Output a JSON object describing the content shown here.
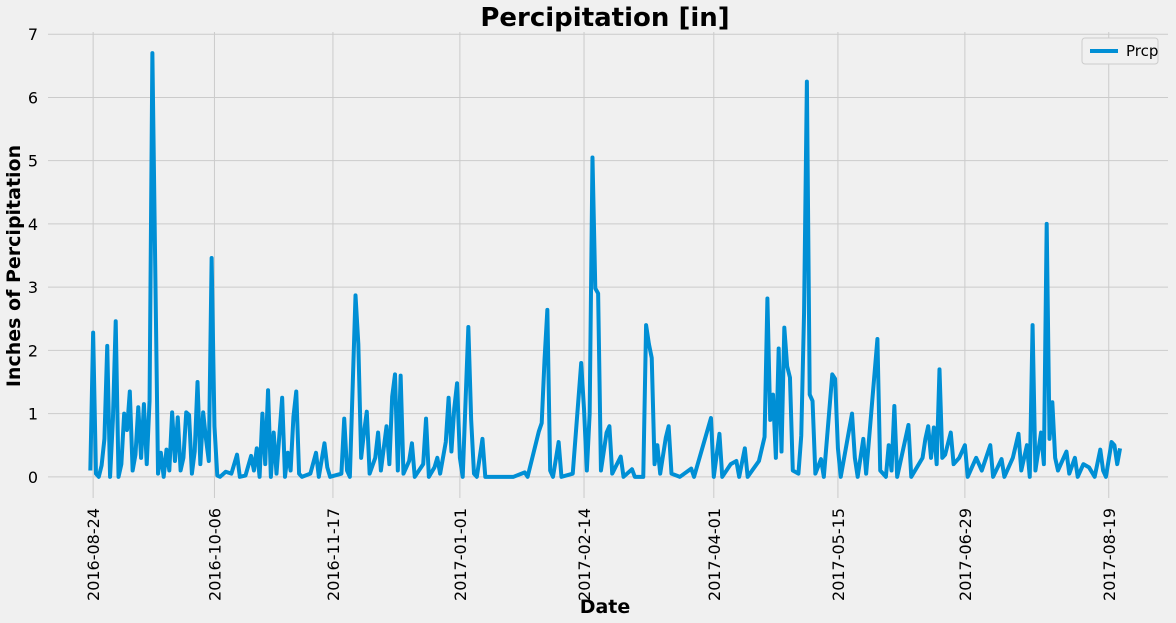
{
  "chart_data": {
    "type": "line",
    "title": "Percipitation [in]",
    "xlabel": "Date",
    "ylabel": "Inches of Percipitation",
    "x": [
      "2016-08-23",
      "2016-08-24",
      "2016-08-25",
      "2016-08-26",
      "2016-08-27",
      "2016-08-28",
      "2016-08-29",
      "2016-08-30",
      "2016-08-31",
      "2016-09-01",
      "2016-09-02",
      "2016-09-03",
      "2016-09-04",
      "2016-09-05",
      "2016-09-06",
      "2016-09-07",
      "2016-09-08",
      "2016-09-09",
      "2016-09-10",
      "2016-09-11",
      "2016-09-12",
      "2016-09-13",
      "2016-09-14",
      "2016-09-15",
      "2016-09-16",
      "2016-09-17",
      "2016-09-18",
      "2016-09-19",
      "2016-09-20",
      "2016-09-21",
      "2016-09-22",
      "2016-09-23",
      "2016-09-24",
      "2016-09-25",
      "2016-09-26",
      "2016-09-27",
      "2016-09-28",
      "2016-09-29",
      "2016-09-30",
      "2016-10-01",
      "2016-10-02",
      "2016-10-03",
      "2016-10-04",
      "2016-10-05",
      "2016-10-06",
      "2016-10-07",
      "2016-10-08",
      "2016-10-10",
      "2016-10-12",
      "2016-10-14",
      "2016-10-15",
      "2016-10-17",
      "2016-10-19",
      "2016-10-20",
      "2016-10-21",
      "2016-10-22",
      "2016-10-23",
      "2016-10-24",
      "2016-10-25",
      "2016-10-26",
      "2016-10-27",
      "2016-10-28",
      "2016-10-30",
      "2016-10-31",
      "2016-11-01",
      "2016-11-02",
      "2016-11-03",
      "2016-11-04",
      "2016-11-05",
      "2016-11-06",
      "2016-11-09",
      "2016-11-11",
      "2016-11-12",
      "2016-11-14",
      "2016-11-15",
      "2016-11-16",
      "2016-11-20",
      "2016-11-21",
      "2016-11-22",
      "2016-11-23",
      "2016-11-25",
      "2016-11-26",
      "2016-11-27",
      "2016-11-28",
      "2016-11-29",
      "2016-11-30",
      "2016-12-02",
      "2016-12-03",
      "2016-12-04",
      "2016-12-06",
      "2016-12-07",
      "2016-12-08",
      "2016-12-09",
      "2016-12-10",
      "2016-12-11",
      "2016-12-12",
      "2016-12-14",
      "2016-12-15",
      "2016-12-16",
      "2016-12-19",
      "2016-12-20",
      "2016-12-21",
      "2016-12-23",
      "2016-12-24",
      "2016-12-25",
      "2016-12-27",
      "2016-12-28",
      "2016-12-29",
      "2016-12-30",
      "2016-12-31",
      "2017-01-01",
      "2017-01-02",
      "2017-01-04",
      "2017-01-05",
      "2017-01-06",
      "2017-01-07",
      "2017-01-09",
      "2017-01-10",
      "2017-01-15",
      "2017-01-20",
      "2017-01-24",
      "2017-01-25",
      "2017-01-29",
      "2017-01-30",
      "2017-01-31",
      "2017-02-01",
      "2017-02-02",
      "2017-02-03",
      "2017-02-05",
      "2017-02-06",
      "2017-02-10",
      "2017-02-13",
      "2017-02-14",
      "2017-02-15",
      "2017-02-16",
      "2017-02-17",
      "2017-02-18",
      "2017-02-19",
      "2017-02-20",
      "2017-02-22",
      "2017-02-23",
      "2017-02-24",
      "2017-02-27",
      "2017-02-28",
      "2017-03-03",
      "2017-03-04",
      "2017-03-07",
      "2017-03-08",
      "2017-03-09",
      "2017-03-10",
      "2017-03-11",
      "2017-03-12",
      "2017-03-13",
      "2017-03-15",
      "2017-03-16",
      "2017-03-17",
      "2017-03-20",
      "2017-03-24",
      "2017-03-25",
      "2017-03-31",
      "2017-04-01",
      "2017-04-03",
      "2017-04-04",
      "2017-04-07",
      "2017-04-09",
      "2017-04-10",
      "2017-04-12",
      "2017-04-13",
      "2017-04-17",
      "2017-04-19",
      "2017-04-20",
      "2017-04-21",
      "2017-04-22",
      "2017-04-23",
      "2017-04-24",
      "2017-04-25",
      "2017-04-26",
      "2017-04-27",
      "2017-04-28",
      "2017-04-29",
      "2017-05-01",
      "2017-05-02",
      "2017-05-03",
      "2017-05-04",
      "2017-05-05",
      "2017-05-06",
      "2017-05-07",
      "2017-05-09",
      "2017-05-10",
      "2017-05-13",
      "2017-05-14",
      "2017-05-15",
      "2017-05-16",
      "2017-05-20",
      "2017-05-21",
      "2017-05-22",
      "2017-05-24",
      "2017-05-25",
      "2017-05-29",
      "2017-05-30",
      "2017-06-01",
      "2017-06-02",
      "2017-06-03",
      "2017-06-04",
      "2017-06-05",
      "2017-06-09",
      "2017-06-10",
      "2017-06-14",
      "2017-06-15",
      "2017-06-16",
      "2017-06-17",
      "2017-06-18",
      "2017-06-19",
      "2017-06-20",
      "2017-06-21",
      "2017-06-22",
      "2017-06-24",
      "2017-06-25",
      "2017-06-27",
      "2017-06-29",
      "2017-06-30",
      "2017-07-03",
      "2017-07-05",
      "2017-07-08",
      "2017-07-09",
      "2017-07-12",
      "2017-07-13",
      "2017-07-16",
      "2017-07-18",
      "2017-07-19",
      "2017-07-21",
      "2017-07-22",
      "2017-07-23",
      "2017-07-24",
      "2017-07-26",
      "2017-07-27",
      "2017-07-28",
      "2017-07-29",
      "2017-07-30",
      "2017-07-31",
      "2017-08-01",
      "2017-08-03",
      "2017-08-04",
      "2017-08-05",
      "2017-08-07",
      "2017-08-08",
      "2017-08-10",
      "2017-08-12",
      "2017-08-14",
      "2017-08-16",
      "2017-08-17",
      "2017-08-18",
      "2017-08-20",
      "2017-08-21",
      "2017-08-22",
      "2017-08-23"
    ],
    "series": [
      {
        "name": "Prcp",
        "color": "#008fd5",
        "values": [
          0.1,
          2.28,
          0.05,
          0.0,
          0.18,
          0.6,
          2.07,
          0.0,
          0.9,
          2.46,
          0.0,
          0.2,
          1.0,
          0.74,
          1.35,
          0.1,
          0.35,
          1.1,
          0.3,
          1.15,
          0.2,
          1.2,
          6.7,
          3.35,
          0.05,
          0.38,
          0.0,
          0.43,
          0.1,
          1.02,
          0.25,
          0.94,
          0.1,
          0.3,
          1.02,
          0.98,
          0.05,
          0.4,
          1.5,
          0.2,
          1.02,
          0.6,
          0.25,
          3.46,
          0.8,
          0.02,
          0.0,
          0.08,
          0.05,
          0.35,
          0.0,
          0.02,
          0.33,
          0.1,
          0.45,
          0.0,
          1.0,
          0.2,
          1.37,
          0.0,
          0.7,
          0.05,
          1.25,
          0.0,
          0.38,
          0.1,
          0.95,
          1.35,
          0.05,
          0.0,
          0.05,
          0.38,
          0.0,
          0.53,
          0.15,
          0.0,
          0.05,
          0.92,
          0.1,
          0.0,
          2.87,
          2.1,
          0.3,
          0.7,
          1.03,
          0.05,
          0.3,
          0.7,
          0.1,
          0.8,
          0.2,
          1.27,
          1.62,
          0.1,
          1.6,
          0.05,
          0.25,
          0.53,
          0.0,
          0.2,
          0.92,
          0.0,
          0.15,
          0.3,
          0.05,
          0.55,
          1.25,
          0.4,
          1.08,
          1.48,
          0.3,
          0.0,
          2.37,
          0.9,
          0.05,
          0.0,
          0.6,
          0.0,
          0.0,
          0.0,
          0.07,
          0.0,
          0.72,
          0.85,
          1.85,
          2.64,
          0.1,
          0.0,
          0.55,
          0.0,
          0.05,
          1.8,
          1.07,
          0.1,
          1.0,
          5.05,
          2.98,
          2.9,
          0.1,
          0.7,
          0.8,
          0.05,
          0.32,
          0.0,
          0.12,
          0.0,
          0.0,
          2.4,
          2.1,
          1.88,
          0.2,
          0.5,
          0.05,
          0.62,
          0.8,
          0.05,
          0.0,
          0.13,
          0.0,
          0.93,
          0.0,
          0.68,
          0.0,
          0.2,
          0.25,
          0.0,
          0.45,
          0.0,
          0.25,
          0.63,
          2.82,
          0.9,
          1.3,
          0.3,
          2.03,
          0.4,
          2.36,
          1.75,
          1.57,
          0.1,
          0.05,
          0.65,
          2.6,
          6.25,
          1.3,
          1.2,
          0.05,
          0.28,
          0.0,
          1.62,
          1.55,
          0.45,
          0.0,
          1.0,
          0.3,
          0.0,
          0.6,
          0.05,
          2.18,
          0.1,
          0.0,
          0.5,
          0.1,
          1.12,
          0.0,
          0.82,
          0.0,
          0.3,
          0.6,
          0.8,
          0.3,
          0.78,
          0.2,
          1.7,
          0.3,
          0.35,
          0.7,
          0.2,
          0.3,
          0.5,
          0.0,
          0.3,
          0.1,
          0.5,
          0.0,
          0.28,
          0.0,
          0.3,
          0.68,
          0.1,
          0.5,
          0.0,
          2.4,
          0.1,
          0.7,
          0.2,
          4.0,
          0.6,
          1.18,
          0.3,
          0.1,
          0.3,
          0.4,
          0.05,
          0.3,
          0.0,
          0.2,
          0.15,
          0.0,
          0.43,
          0.1,
          0.0,
          0.55,
          0.5,
          0.2,
          0.45
        ]
      }
    ],
    "xlim": [
      "2016-08-08",
      "2017-09-09"
    ],
    "xticks": [
      "2016-08-24",
      "2016-10-06",
      "2016-11-17",
      "2017-01-01",
      "2017-02-14",
      "2017-04-01",
      "2017-05-15",
      "2017-06-29",
      "2017-08-19"
    ],
    "ylim": [
      -0.335,
      7.035
    ],
    "yticks": [
      0,
      1,
      2,
      3,
      4,
      5,
      6,
      7
    ],
    "grid": true,
    "legend": "upper right"
  }
}
